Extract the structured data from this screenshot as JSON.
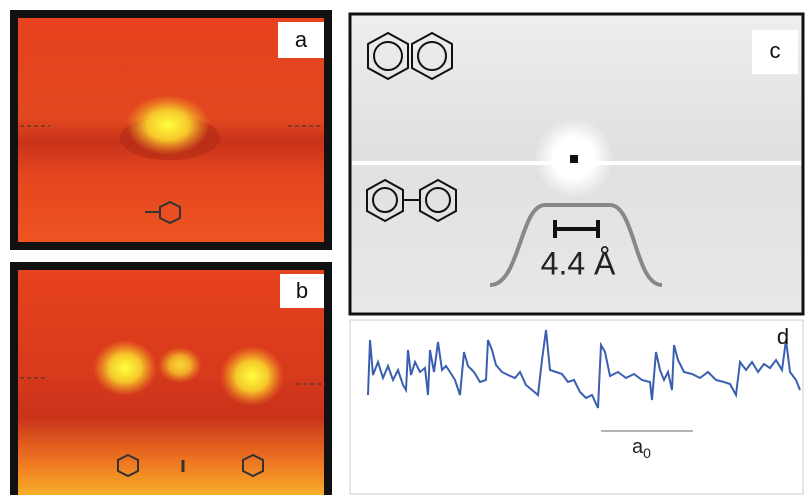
{
  "panels": [
    {
      "label": "a"
    },
    {
      "label": "b"
    },
    {
      "label": "c",
      "annotation": "4.4 Å"
    },
    {
      "label": "d",
      "scale_label": {
        "base": "a",
        "subscript": "0"
      }
    }
  ]
}
